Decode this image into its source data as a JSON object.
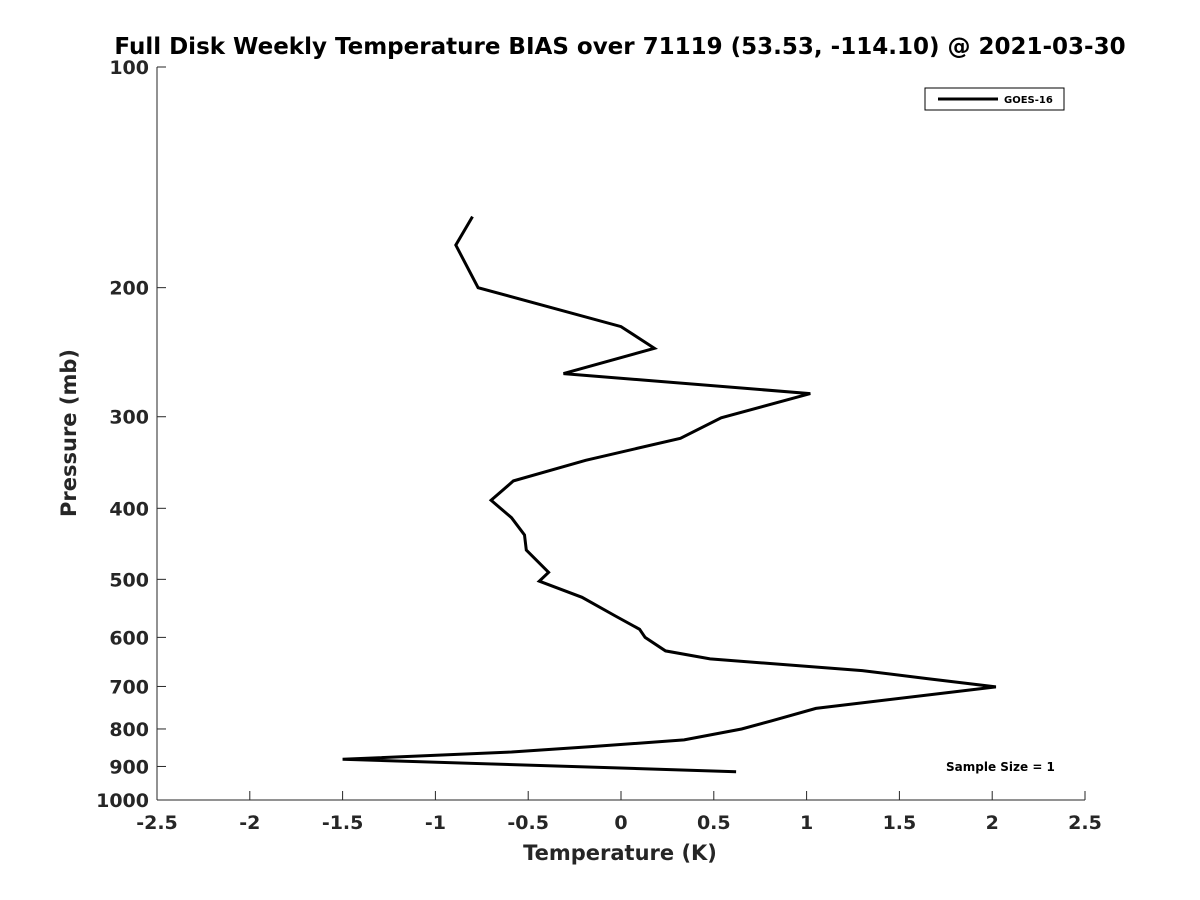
{
  "chart_data": {
    "type": "line",
    "title": "Full Disk Weekly Temperature BIAS over 71119 (53.53, -114.10) @ 2021-03-30",
    "xlabel": "Temperature (K)",
    "ylabel": "Pressure (mb)",
    "xlim": [
      -2.5,
      2.5
    ],
    "ylim": [
      100,
      1000
    ],
    "y_scale": "log",
    "y_reversed": true,
    "x_ticks": [
      -2.5,
      -2,
      -1.5,
      -1,
      -0.5,
      0,
      0.5,
      1,
      1.5,
      2,
      2.5
    ],
    "x_tick_labels": [
      "-2.5",
      "-2",
      "-1.5",
      "-1",
      "-0.5",
      "0",
      "0.5",
      "1",
      "1.5",
      "2",
      "2.5"
    ],
    "y_ticks": [
      100,
      200,
      300,
      400,
      500,
      600,
      700,
      800,
      900,
      1000
    ],
    "y_tick_labels": [
      "100",
      "200",
      "300",
      "400",
      "500",
      "600",
      "700",
      "800",
      "900",
      "1000"
    ],
    "grid": false,
    "legend_position": "top-right",
    "series": [
      {
        "name": "GOES-16",
        "color": "#000000",
        "points": [
          {
            "x": -0.8,
            "y": 160
          },
          {
            "x": -0.89,
            "y": 175
          },
          {
            "x": -0.77,
            "y": 200
          },
          {
            "x": 0.0,
            "y": 226
          },
          {
            "x": 0.18,
            "y": 242
          },
          {
            "x": -0.31,
            "y": 262
          },
          {
            "x": 1.02,
            "y": 279
          },
          {
            "x": 0.54,
            "y": 301
          },
          {
            "x": 0.32,
            "y": 321
          },
          {
            "x": -0.19,
            "y": 344
          },
          {
            "x": -0.58,
            "y": 367
          },
          {
            "x": -0.7,
            "y": 390
          },
          {
            "x": -0.59,
            "y": 412
          },
          {
            "x": -0.52,
            "y": 435
          },
          {
            "x": -0.51,
            "y": 456
          },
          {
            "x": -0.39,
            "y": 489
          },
          {
            "x": -0.44,
            "y": 503
          },
          {
            "x": -0.21,
            "y": 529
          },
          {
            "x": -0.03,
            "y": 561
          },
          {
            "x": 0.1,
            "y": 585
          },
          {
            "x": 0.13,
            "y": 600
          },
          {
            "x": 0.24,
            "y": 626
          },
          {
            "x": 0.48,
            "y": 642
          },
          {
            "x": 1.3,
            "y": 666
          },
          {
            "x": 1.65,
            "y": 683
          },
          {
            "x": 2.02,
            "y": 701
          },
          {
            "x": 1.05,
            "y": 750
          },
          {
            "x": 0.81,
            "y": 780
          },
          {
            "x": 0.65,
            "y": 800
          },
          {
            "x": 0.34,
            "y": 828
          },
          {
            "x": -0.17,
            "y": 846
          },
          {
            "x": -0.59,
            "y": 860
          },
          {
            "x": -1.5,
            "y": 880
          },
          {
            "x": 0.62,
            "y": 915
          }
        ]
      }
    ],
    "annotations": [
      "Sample Size = 1"
    ]
  }
}
